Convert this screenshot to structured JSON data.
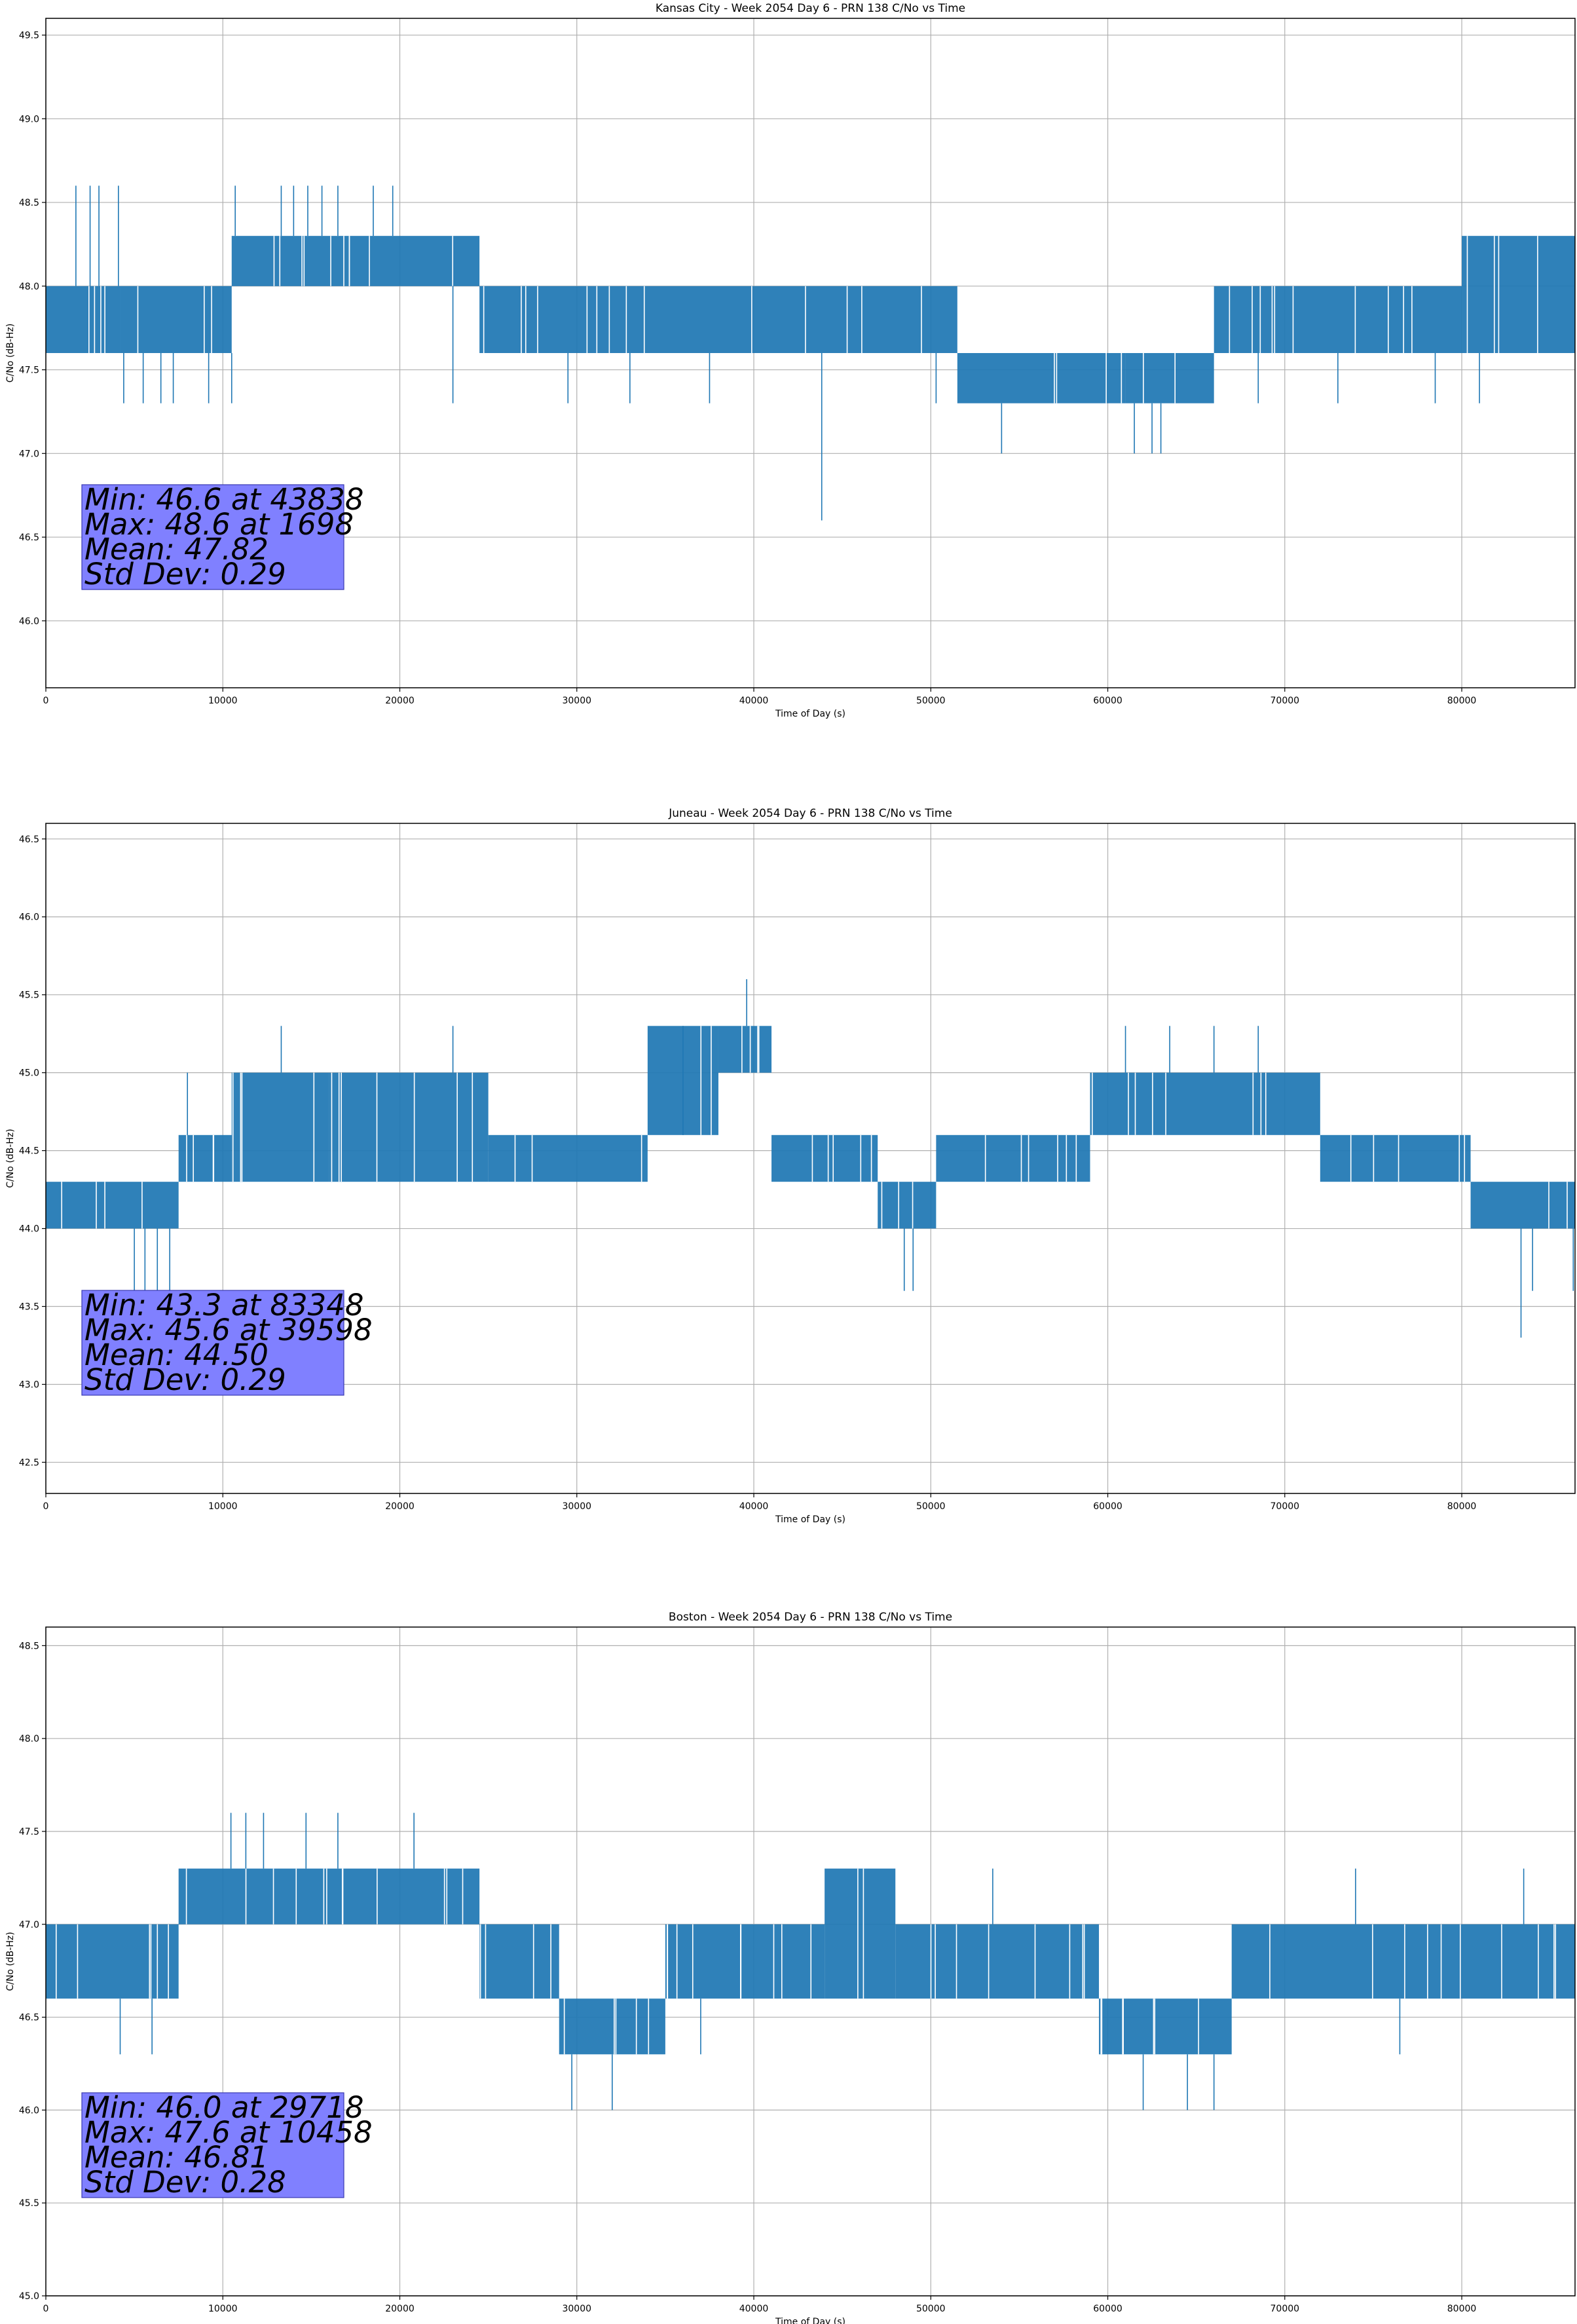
{
  "chart_data": [
    {
      "type": "line",
      "title": "Kansas City - Week 2054 Day 6 - PRN 138 C/No vs Time",
      "xlabel": "Time of Day (s)",
      "ylabel": "C/No (dB-Hz)",
      "xlim": [
        0,
        86400
      ],
      "ylim": [
        45.6,
        49.6
      ],
      "xticks": [
        0,
        10000,
        20000,
        30000,
        40000,
        50000,
        60000,
        70000,
        80000
      ],
      "yticks": [
        "46.0",
        "46.5",
        "47.0",
        "47.5",
        "48.0",
        "48.5",
        "49.0",
        "49.5"
      ],
      "grid": true,
      "color": "#1f77b4",
      "series": [
        {
          "name": "PRN 138 C/No",
          "segments": [
            {
              "x": [
                0,
                4200
              ],
              "low": 47.6,
              "high": 48.0
            },
            {
              "x": [
                4200,
                10500
              ],
              "low": 47.6,
              "high": 48.0
            },
            {
              "x": [
                10500,
                20000
              ],
              "low": 48.0,
              "high": 48.3
            },
            {
              "x": [
                20000,
                24500
              ],
              "low": 48.0,
              "high": 48.3
            },
            {
              "x": [
                24500,
                51500
              ],
              "low": 47.6,
              "high": 48.0
            },
            {
              "x": [
                51500,
                61000
              ],
              "low": 47.3,
              "high": 47.6
            },
            {
              "x": [
                61000,
                66000
              ],
              "low": 47.3,
              "high": 47.6
            },
            {
              "x": [
                66000,
                80000
              ],
              "low": 47.6,
              "high": 48.0
            },
            {
              "x": [
                80000,
                86400
              ],
              "low": 47.6,
              "high": 48.3
            }
          ],
          "excursions": [
            {
              "x": 1698,
              "y": 48.6
            },
            {
              "x": 2500,
              "y": 48.6
            },
            {
              "x": 3000,
              "y": 48.6
            },
            {
              "x": 4100,
              "y": 48.6
            },
            {
              "x": 4400,
              "y": 47.3
            },
            {
              "x": 5500,
              "y": 47.3
            },
            {
              "x": 6500,
              "y": 47.3
            },
            {
              "x": 7200,
              "y": 47.3
            },
            {
              "x": 9200,
              "y": 47.3
            },
            {
              "x": 10500,
              "y": 47.3
            },
            {
              "x": 10700,
              "y": 48.6
            },
            {
              "x": 13300,
              "y": 48.6
            },
            {
              "x": 14000,
              "y": 48.6
            },
            {
              "x": 14800,
              "y": 48.6
            },
            {
              "x": 15600,
              "y": 48.6
            },
            {
              "x": 16500,
              "y": 48.6
            },
            {
              "x": 18500,
              "y": 48.6
            },
            {
              "x": 19600,
              "y": 48.6
            },
            {
              "x": 23000,
              "y": 47.3
            },
            {
              "x": 29500,
              "y": 47.3
            },
            {
              "x": 33000,
              "y": 47.3
            },
            {
              "x": 37500,
              "y": 47.3
            },
            {
              "x": 43838,
              "y": 46.6
            },
            {
              "x": 50300,
              "y": 47.3
            },
            {
              "x": 54000,
              "y": 47.0
            },
            {
              "x": 61500,
              "y": 47.0
            },
            {
              "x": 62500,
              "y": 47.0
            },
            {
              "x": 63000,
              "y": 47.0
            },
            {
              "x": 68500,
              "y": 47.3
            },
            {
              "x": 73000,
              "y": 47.3
            },
            {
              "x": 78500,
              "y": 47.3
            },
            {
              "x": 81000,
              "y": 47.3
            }
          ]
        }
      ],
      "annotation": {
        "lines": [
          "Min: 46.6 at 43838",
          "Max: 48.6 at 1698",
          "Mean: 47.82",
          "Std Dev: 0.29"
        ],
        "background": "#8080ff"
      }
    },
    {
      "type": "line",
      "title": "Juneau - Week 2054 Day 6 - PRN 138 C/No vs Time",
      "xlabel": "Time of Day (s)",
      "ylabel": "C/No (dB-Hz)",
      "xlim": [
        0,
        86400
      ],
      "ylim": [
        42.3,
        46.6
      ],
      "xticks": [
        0,
        10000,
        20000,
        30000,
        40000,
        50000,
        60000,
        70000,
        80000
      ],
      "yticks": [
        "42.5",
        "43.0",
        "43.5",
        "44.0",
        "44.5",
        "45.0",
        "45.5",
        "46.0",
        "46.5"
      ],
      "grid": true,
      "color": "#1f77b4",
      "series": [
        {
          "name": "PRN 138 C/No",
          "segments": [
            {
              "x": [
                0,
                7500
              ],
              "low": 44.0,
              "high": 44.3
            },
            {
              "x": [
                7500,
                10500
              ],
              "low": 44.3,
              "high": 44.6
            },
            {
              "x": [
                10500,
                16000
              ],
              "low": 44.3,
              "high": 45.0
            },
            {
              "x": [
                16000,
                25000
              ],
              "low": 44.3,
              "high": 45.0
            },
            {
              "x": [
                25000,
                34000
              ],
              "low": 44.3,
              "high": 44.6
            },
            {
              "x": [
                34000,
                38000
              ],
              "low": 44.6,
              "high": 45.3
            },
            {
              "x": [
                38000,
                41000
              ],
              "low": 45.0,
              "high": 45.3
            },
            {
              "x": [
                41000,
                47000
              ],
              "low": 44.3,
              "high": 44.6
            },
            {
              "x": [
                47000,
                50300
              ],
              "low": 44.0,
              "high": 44.3
            },
            {
              "x": [
                50300,
                59000
              ],
              "low": 44.3,
              "high": 44.6
            },
            {
              "x": [
                59000,
                72000
              ],
              "low": 44.6,
              "high": 45.0
            },
            {
              "x": [
                72000,
                80500
              ],
              "low": 44.3,
              "high": 44.6
            },
            {
              "x": [
                80500,
                86400
              ],
              "low": 44.0,
              "high": 44.3
            }
          ],
          "excursions": [
            {
              "x": 2000,
              "y": 44.0
            },
            {
              "x": 5000,
              "y": 43.6
            },
            {
              "x": 5600,
              "y": 43.6
            },
            {
              "x": 6300,
              "y": 43.6
            },
            {
              "x": 7000,
              "y": 43.6
            },
            {
              "x": 8000,
              "y": 45.0
            },
            {
              "x": 13300,
              "y": 45.3
            },
            {
              "x": 23000,
              "y": 45.3
            },
            {
              "x": 36000,
              "y": 45.3
            },
            {
              "x": 39598,
              "y": 45.6
            },
            {
              "x": 48500,
              "y": 43.6
            },
            {
              "x": 49000,
              "y": 43.6
            },
            {
              "x": 61000,
              "y": 45.3
            },
            {
              "x": 63500,
              "y": 45.3
            },
            {
              "x": 66000,
              "y": 45.3
            },
            {
              "x": 68500,
              "y": 45.3
            },
            {
              "x": 83348,
              "y": 43.3
            },
            {
              "x": 84000,
              "y": 43.6
            },
            {
              "x": 86300,
              "y": 43.6
            }
          ]
        }
      ],
      "annotation": {
        "lines": [
          "Min: 43.3 at 83348",
          "Max: 45.6 at 39598",
          "Mean: 44.50",
          "Std Dev: 0.29"
        ],
        "background": "#8080ff"
      }
    },
    {
      "type": "line",
      "title": "Boston - Week 2054 Day 6 - PRN 138 C/No vs Time",
      "xlabel": "Time of Day (s)",
      "ylabel": "C/No (dB-Hz)",
      "xlim": [
        0,
        86400
      ],
      "ylim": [
        45.0,
        48.6
      ],
      "xticks": [
        0,
        10000,
        20000,
        30000,
        40000,
        50000,
        60000,
        70000,
        80000
      ],
      "yticks": [
        "45.0",
        "45.5",
        "46.0",
        "46.5",
        "47.0",
        "47.5",
        "48.0",
        "48.5"
      ],
      "grid": true,
      "color": "#1f77b4",
      "series": [
        {
          "name": "PRN 138 C/No",
          "segments": [
            {
              "x": [
                0,
                7500
              ],
              "low": 46.6,
              "high": 47.0
            },
            {
              "x": [
                7500,
                24500
              ],
              "low": 47.0,
              "high": 47.3
            },
            {
              "x": [
                24500,
                29000
              ],
              "low": 46.6,
              "high": 47.0
            },
            {
              "x": [
                29000,
                35000
              ],
              "low": 46.3,
              "high": 46.6
            },
            {
              "x": [
                35000,
                44000
              ],
              "low": 46.6,
              "high": 47.0
            },
            {
              "x": [
                44000,
                48000
              ],
              "low": 46.6,
              "high": 47.3
            },
            {
              "x": [
                48000,
                59500
              ],
              "low": 46.6,
              "high": 47.0
            },
            {
              "x": [
                59500,
                67000
              ],
              "low": 46.3,
              "high": 46.6
            },
            {
              "x": [
                67000,
                86400
              ],
              "low": 46.6,
              "high": 47.0
            }
          ],
          "excursions": [
            {
              "x": 4200,
              "y": 46.3
            },
            {
              "x": 6000,
              "y": 46.3
            },
            {
              "x": 10458,
              "y": 47.6
            },
            {
              "x": 11300,
              "y": 47.6
            },
            {
              "x": 12300,
              "y": 47.6
            },
            {
              "x": 14700,
              "y": 47.6
            },
            {
              "x": 16500,
              "y": 47.6
            },
            {
              "x": 20800,
              "y": 47.6
            },
            {
              "x": 29718,
              "y": 46.0
            },
            {
              "x": 32000,
              "y": 46.0
            },
            {
              "x": 37000,
              "y": 46.3
            },
            {
              "x": 53500,
              "y": 47.3
            },
            {
              "x": 62000,
              "y": 46.0
            },
            {
              "x": 64500,
              "y": 46.0
            },
            {
              "x": 66000,
              "y": 46.0
            },
            {
              "x": 74000,
              "y": 47.3
            },
            {
              "x": 76500,
              "y": 46.3
            },
            {
              "x": 83500,
              "y": 47.3
            }
          ]
        }
      ],
      "annotation": {
        "lines": [
          "Min: 46.0 at 29718",
          "Max: 47.6 at 10458",
          "Mean: 46.81",
          "Std Dev: 0.28"
        ],
        "background": "#8080ff"
      }
    }
  ]
}
